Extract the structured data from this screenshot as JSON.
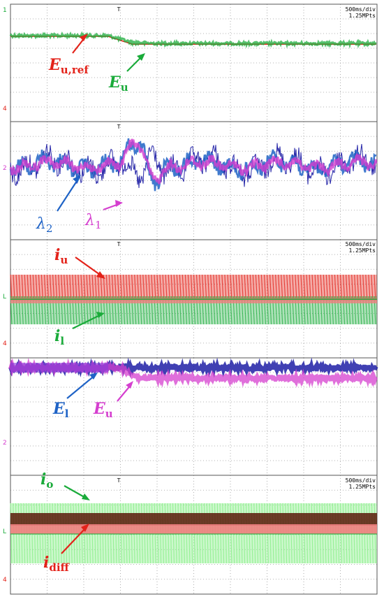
{
  "colors": {
    "red": "#e32219",
    "green": "#1aab3a",
    "blue": "#1f63c6",
    "magenta": "#d53fcf",
    "pink": "#ef7e7e",
    "lightgreen": "#8fef8f",
    "darkred": "#5a1a0a",
    "navy": "#1010a0",
    "violet": "#8a3cd8",
    "grid": "#9a9a9a",
    "frame": "#555555"
  },
  "chart_data": [
    {
      "type": "line",
      "panel": "voltage-tracking",
      "timebase": "500ms/div",
      "record_length": "1.25MPts",
      "series": [
        {
          "name": "E",
          "subscript": "u,ref",
          "color": "#e32219",
          "values": [
            1,
            1,
            1,
            1,
            1,
            0.92,
            0.92,
            0.92,
            0.92,
            0.92,
            0.92,
            0.92,
            0.92,
            0.92,
            0.92,
            0.92
          ]
        },
        {
          "name": "E",
          "subscript": "u",
          "color": "#1aab3a",
          "values": [
            1,
            1,
            1,
            1,
            1,
            0.93,
            0.92,
            0.92,
            0.92,
            0.92,
            0.92,
            0.92,
            0.92,
            0.92,
            0.92,
            0.92
          ]
        }
      ]
    },
    {
      "type": "line",
      "panel": "multipliers",
      "series": [
        {
          "name": "λ",
          "subscript": "2",
          "color": "#1f63c6"
        },
        {
          "name": "λ",
          "subscript": "1",
          "color": "#d53fcf"
        }
      ]
    },
    {
      "type": "line",
      "panel": "arm-currents",
      "timebase": "500ms/div",
      "record_length": "1.25MPts",
      "series": [
        {
          "name": "i",
          "subscript": "u",
          "color": "#e32219"
        },
        {
          "name": "i",
          "subscript": "l",
          "color": "#1aab3a"
        }
      ]
    },
    {
      "type": "line",
      "panel": "arm-energies",
      "series": [
        {
          "name": "E",
          "subscript": "l",
          "color": "#1f63c6"
        },
        {
          "name": "E",
          "subscript": "u",
          "color": "#d53fcf"
        }
      ]
    },
    {
      "type": "line",
      "panel": "output-currents",
      "timebase": "500ms/div",
      "record_length": "1.25MPts",
      "series": [
        {
          "name": "i",
          "subscript": "o",
          "color": "#1aab3a"
        },
        {
          "name": "i",
          "subscript": "diff",
          "color": "#e32219"
        }
      ]
    }
  ],
  "panels": [
    {
      "timebase": "500ms/div",
      "record": "1.25MPts",
      "trigger": "T"
    },
    {
      "trigger": "T"
    },
    {
      "timebase": "500ms/div",
      "record": "1.25MPts",
      "trigger": "T"
    },
    {
      "trigger": ""
    },
    {
      "timebase": "500ms/div",
      "record": "1.25MPts",
      "trigger": "T"
    }
  ],
  "labels": {
    "p1_eu_ref": {
      "main": "E",
      "sub": "u,ref"
    },
    "p1_eu": {
      "main": "E",
      "sub": "u"
    },
    "p2_l2": {
      "main": "λ",
      "sub": "2"
    },
    "p2_l1": {
      "main": "λ",
      "sub": "1"
    },
    "p3_iu": {
      "main": "i",
      "sub": "u"
    },
    "p3_il": {
      "main": "i",
      "sub": "l"
    },
    "p4_el": {
      "main": "E",
      "sub": "l"
    },
    "p4_eu": {
      "main": "E",
      "sub": "u"
    },
    "p5_io": {
      "main": "i",
      "sub": "o"
    },
    "p5_idiff": {
      "main": "i",
      "sub": "diff"
    }
  }
}
